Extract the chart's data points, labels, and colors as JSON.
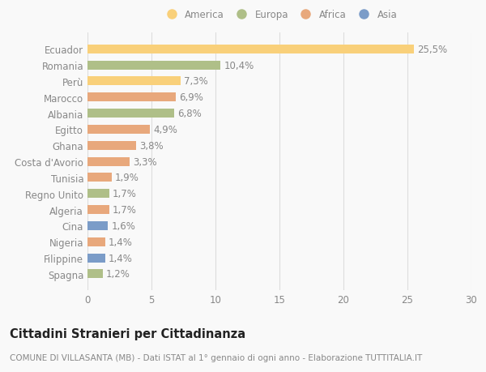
{
  "countries": [
    "Ecuador",
    "Romania",
    "Perù",
    "Marocco",
    "Albania",
    "Egitto",
    "Ghana",
    "Costa d'Avorio",
    "Tunisia",
    "Regno Unito",
    "Algeria",
    "Cina",
    "Nigeria",
    "Filippine",
    "Spagna"
  ],
  "values": [
    25.5,
    10.4,
    7.3,
    6.9,
    6.8,
    4.9,
    3.8,
    3.3,
    1.9,
    1.7,
    1.7,
    1.6,
    1.4,
    1.4,
    1.2
  ],
  "labels": [
    "25,5%",
    "10,4%",
    "7,3%",
    "6,9%",
    "6,8%",
    "4,9%",
    "3,8%",
    "3,3%",
    "1,9%",
    "1,7%",
    "1,7%",
    "1,6%",
    "1,4%",
    "1,4%",
    "1,2%"
  ],
  "continents": [
    "America",
    "Europa",
    "America",
    "Africa",
    "Europa",
    "Africa",
    "Africa",
    "Africa",
    "Africa",
    "Europa",
    "Africa",
    "Asia",
    "Africa",
    "Asia",
    "Europa"
  ],
  "colors": {
    "America": "#F9D07A",
    "Europa": "#AFBF88",
    "Africa": "#E8A87C",
    "Asia": "#7B9CC8"
  },
  "legend_order": [
    "America",
    "Europa",
    "Africa",
    "Asia"
  ],
  "title": "Cittadini Stranieri per Cittadinanza",
  "subtitle": "COMUNE DI VILLASANTA (MB) - Dati ISTAT al 1° gennaio di ogni anno - Elaborazione TUTTITALIA.IT",
  "xlim": [
    0,
    30
  ],
  "xticks": [
    0,
    5,
    10,
    15,
    20,
    25,
    30
  ],
  "background_color": "#f9f9f9",
  "bar_height": 0.55,
  "grid_color": "#dddddd",
  "label_fontsize": 8.5,
  "tick_fontsize": 8.5,
  "title_fontsize": 10.5,
  "subtitle_fontsize": 7.5,
  "text_color": "#888888",
  "title_color": "#222222"
}
